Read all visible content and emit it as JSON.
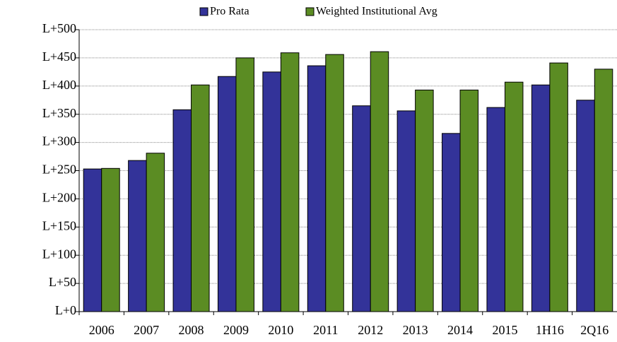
{
  "chart_data": {
    "type": "bar",
    "categories": [
      "2006",
      "2007",
      "2008",
      "2009",
      "2010",
      "2011",
      "2012",
      "2013",
      "2014",
      "2015",
      "1H16",
      "2Q16"
    ],
    "series": [
      {
        "name": "Pro Rata",
        "color": "#333399",
        "values": [
          253,
          268,
          358,
          417,
          425,
          436,
          365,
          356,
          316,
          362,
          402,
          375
        ]
      },
      {
        "name": "Weighted Institutional Avg",
        "color": "#5b8c23",
        "values": [
          254,
          281,
          402,
          450,
          459,
          456,
          461,
          393,
          393,
          407,
          441,
          430
        ]
      }
    ],
    "ylim": [
      0,
      500
    ],
    "yticks": [
      {
        "value": 0,
        "label": "L+0"
      },
      {
        "value": 50,
        "label": "L+50"
      },
      {
        "value": 100,
        "label": "L+100"
      },
      {
        "value": 150,
        "label": "L+150"
      },
      {
        "value": 200,
        "label": "L+200"
      },
      {
        "value": 250,
        "label": "L+250"
      },
      {
        "value": 300,
        "label": "L+300"
      },
      {
        "value": 350,
        "label": "L+350"
      },
      {
        "value": 400,
        "label": "L+400"
      },
      {
        "value": 450,
        "label": "L+450"
      },
      {
        "value": 500,
        "label": "L+500"
      }
    ],
    "grid": true,
    "legend": "top"
  }
}
